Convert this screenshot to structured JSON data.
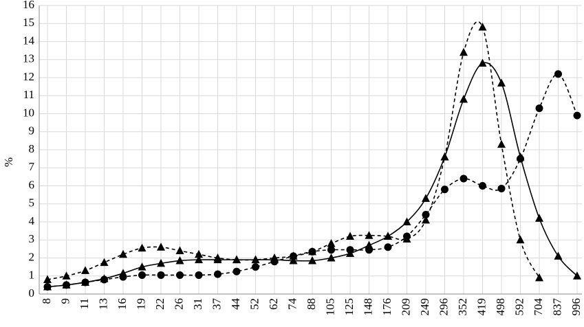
{
  "chart_data": {
    "type": "line",
    "y_label": "%",
    "categories": [
      "8",
      "9",
      "11",
      "13",
      "16",
      "19",
      "22",
      "26",
      "31",
      "37",
      "44",
      "52",
      "62",
      "74",
      "88",
      "105",
      "125",
      "148",
      "176",
      "209",
      "249",
      "296",
      "352",
      "419",
      "498",
      "592",
      "704",
      "837",
      "996"
    ],
    "ylim": [
      0,
      16
    ],
    "yticks": [
      0,
      1,
      2,
      3,
      4,
      5,
      6,
      7,
      8,
      9,
      10,
      11,
      12,
      13,
      14,
      15,
      16
    ],
    "grid": true,
    "smooth": true,
    "series": [
      {
        "color": "#000000",
        "line_style": "solid",
        "marker": "triangle",
        "values": [
          0.4,
          0.5,
          0.65,
          0.85,
          1.15,
          1.5,
          1.7,
          1.85,
          1.9,
          1.9,
          1.9,
          1.9,
          1.9,
          1.85,
          1.85,
          2.0,
          2.25,
          2.7,
          3.2,
          4.0,
          5.3,
          7.6,
          10.8,
          12.8,
          11.7,
          7.6,
          4.2,
          2.1,
          1.0
        ]
      },
      {
        "color": "#000000",
        "line_style": "dashed",
        "marker": "triangle",
        "values": [
          0.8,
          1.0,
          1.3,
          1.75,
          2.2,
          2.55,
          2.6,
          2.4,
          2.2,
          2.0,
          1.9,
          1.9,
          2.0,
          2.1,
          2.35,
          2.8,
          3.2,
          3.25,
          3.2,
          3.05,
          4.1,
          7.6,
          13.4,
          14.8,
          8.3,
          3.0,
          0.9,
          null,
          null
        ]
      },
      {
        "color": "#000000",
        "line_style": "dashed",
        "marker": "circle",
        "values": [
          0.4,
          0.5,
          0.65,
          0.8,
          0.95,
          1.05,
          1.05,
          1.05,
          1.05,
          1.1,
          1.25,
          1.5,
          1.8,
          2.1,
          2.35,
          2.45,
          2.45,
          2.45,
          2.6,
          3.2,
          4.4,
          5.8,
          6.4,
          6.0,
          5.85,
          7.5,
          10.3,
          12.2,
          9.9
        ]
      }
    ]
  }
}
